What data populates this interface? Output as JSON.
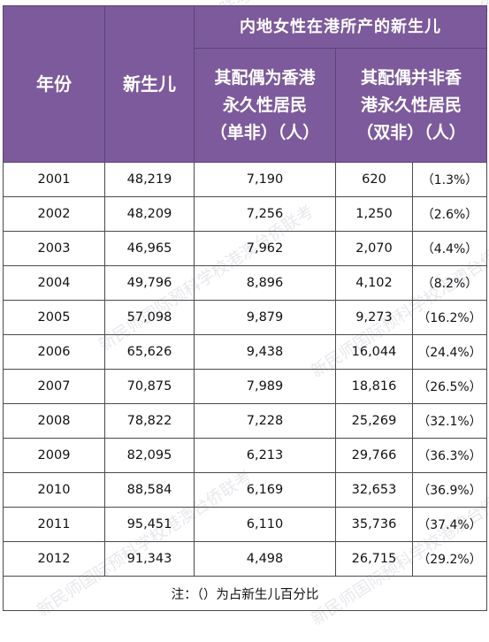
{
  "headers": {
    "year": "年份",
    "newborn": "新生儿",
    "group": "内地女性在港所产的新生儿",
    "single_line1": "其配偶为香港",
    "single_line2": "永久性居民",
    "single_line3": "（单非）（人）",
    "double_line1": "其配偶并非香",
    "double_line2": "港永久性居民",
    "double_line3": "（双非）（人）"
  },
  "rows": [
    {
      "year": "2001",
      "newborn": "48,219",
      "single": "7,190",
      "double": "620",
      "pct": "（1.3%）"
    },
    {
      "year": "2002",
      "newborn": "48,209",
      "single": "7,256",
      "double": "1,250",
      "pct": "（2.6%）"
    },
    {
      "year": "2003",
      "newborn": "46,965",
      "single": "7,962",
      "double": "2,070",
      "pct": "（4.4%）"
    },
    {
      "year": "2004",
      "newborn": "49,796",
      "single": "8,896",
      "double": "4,102",
      "pct": "（8.2%）"
    },
    {
      "year": "2005",
      "newborn": "57,098",
      "single": "9,879",
      "double": "9,273",
      "pct": "（16.2%）"
    },
    {
      "year": "2006",
      "newborn": "65,626",
      "single": "9,438",
      "double": "16,044",
      "pct": "（24.4%）"
    },
    {
      "year": "2007",
      "newborn": "70,875",
      "single": "7,989",
      "double": "18,816",
      "pct": "（26.5%）"
    },
    {
      "year": "2008",
      "newborn": "78,822",
      "single": "7,228",
      "double": "25,269",
      "pct": "（32.1%）"
    },
    {
      "year": "2009",
      "newborn": "82,095",
      "single": "6,213",
      "double": "29,766",
      "pct": "（36.3%）"
    },
    {
      "year": "2010",
      "newborn": "88,584",
      "single": "6,169",
      "double": "32,653",
      "pct": "（36.9%）"
    },
    {
      "year": "2011",
      "newborn": "95,451",
      "single": "6,110",
      "double": "35,736",
      "pct": "（37.4%）"
    },
    {
      "year": "2012",
      "newborn": "91,343",
      "single": "4,498",
      "double": "26,715",
      "pct": "（29.2%）"
    }
  ],
  "note": "注：（）为占新生儿百分比",
  "watermark": "新民师国际预科学校港澳台侨联考"
}
